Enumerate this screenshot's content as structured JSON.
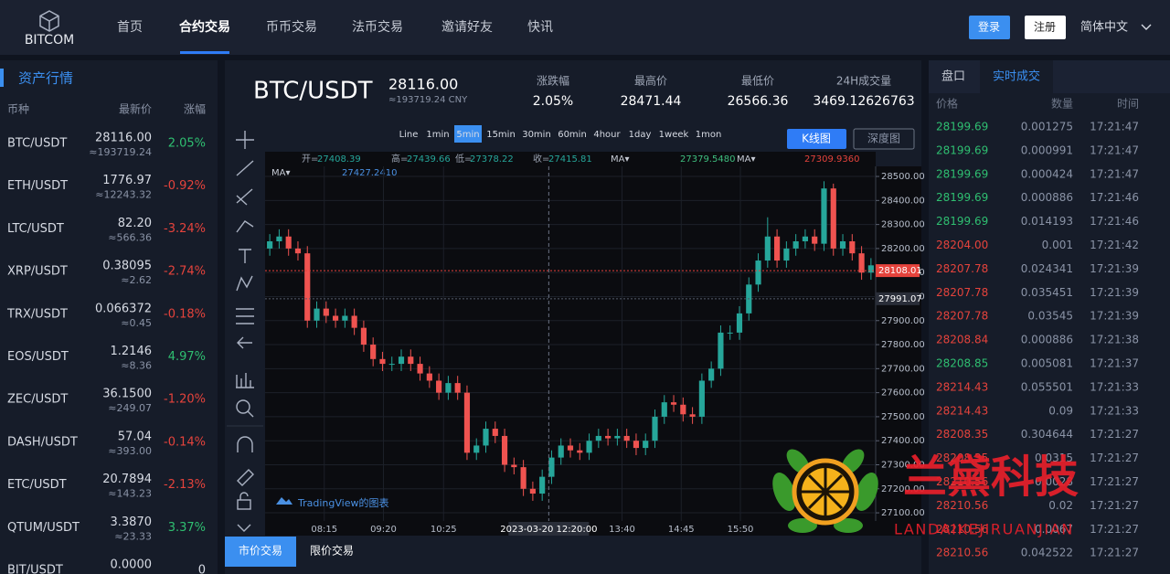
{
  "nav": {
    "logo": "BITCOM",
    "items": [
      "首页",
      "合约交易",
      "币币交易",
      "法币交易",
      "邀请好友",
      "快讯"
    ],
    "active": 1,
    "login": "登录",
    "register": "注册",
    "language": "简体中文"
  },
  "market": {
    "title": "资产行情",
    "columns": [
      "币种",
      "最新价",
      "涨幅"
    ],
    "rows": [
      {
        "pair": "BTC/USDT",
        "price": "28116.00",
        "cny": "≈193719.24",
        "change": "2.05%"
      },
      {
        "pair": "ETH/USDT",
        "price": "1776.97",
        "cny": "≈12243.32",
        "change": "-0.92%"
      },
      {
        "pair": "LTC/USDT",
        "price": "82.20",
        "cny": "≈566.36",
        "change": "-3.24%"
      },
      {
        "pair": "XRP/USDT",
        "price": "0.38095",
        "cny": "≈2.62",
        "change": "-2.74%"
      },
      {
        "pair": "TRX/USDT",
        "price": "0.066372",
        "cny": "≈0.45",
        "change": "-0.18%"
      },
      {
        "pair": "EOS/USDT",
        "price": "1.2146",
        "cny": "≈8.36",
        "change": "4.97%"
      },
      {
        "pair": "ZEC/USDT",
        "price": "36.1500",
        "cny": "≈249.07",
        "change": "-1.20%"
      },
      {
        "pair": "DASH/USDT",
        "price": "57.04",
        "cny": "≈393.00",
        "change": "-0.14%"
      },
      {
        "pair": "ETC/USDT",
        "price": "20.7894",
        "cny": "≈143.23",
        "change": "-2.13%"
      },
      {
        "pair": "QTUM/USDT",
        "price": "3.3870",
        "cny": "≈23.33",
        "change": "3.37%"
      },
      {
        "pair": "BIT/USDT",
        "price": "0.0000",
        "change": "0"
      }
    ],
    "up_color": "#2fbf71",
    "down_color": "#e5433c"
  },
  "ticker": {
    "pair": "BTC/USDT",
    "price": "28116.00",
    "cny": "≈193719.24 CNY",
    "stats": [
      {
        "label": "涨跌幅",
        "value": "2.05%"
      },
      {
        "label": "最高价",
        "value": "28471.44"
      },
      {
        "label": "最低价",
        "value": "26566.36"
      },
      {
        "label": "24H成交量",
        "value": "3469.12626763"
      }
    ]
  },
  "toolbar": {
    "intervals": [
      "Line",
      "1min",
      "5min",
      "15min",
      "30min",
      "60min",
      "4hour",
      "1day",
      "1week",
      "1mon"
    ],
    "active": 2,
    "kline": "K线图",
    "depth": "深度图"
  },
  "legend": {
    "ohlc": [
      {
        "label": "开=",
        "value": "27408.39"
      },
      {
        "label": "高=",
        "value": "27439.66"
      },
      {
        "label": "低=",
        "value": "27378.22"
      },
      {
        "label": "收=",
        "value": "27415.81"
      }
    ],
    "ma": [
      {
        "label": "MA▾",
        "value": "27379.5480",
        "color": "#3fbf7f"
      },
      {
        "label": "MA▾",
        "value": "27309.9360",
        "color": "#e5433c"
      },
      {
        "label": "MA▾",
        "value": "27427.2410",
        "color": "#4a90e2"
      }
    ]
  },
  "chart_data": {
    "type": "candlestick",
    "up_color": "#26a69a",
    "down_color": "#ef5350",
    "open": [
      28200,
      28230,
      28250,
      28200,
      28180,
      27900,
      27950,
      27920,
      27900,
      27920,
      27870,
      27800,
      27740,
      27720,
      27720,
      27750,
      27720,
      27680,
      27650,
      27600,
      27640,
      27600,
      27350,
      27380,
      27450,
      27420,
      27300,
      27290,
      27200,
      27180,
      27250,
      27330,
      27380,
      27360,
      27350,
      27400,
      27420,
      27410,
      27420,
      27400,
      27370,
      27400,
      27500,
      27560,
      27550,
      27510,
      27500,
      27650,
      27700,
      27850,
      27850,
      27930,
      28050,
      28150,
      28250,
      28150,
      28200,
      28230,
      28250,
      28220,
      28450,
      28200,
      28230,
      28180,
      28100
    ],
    "high": [
      28260,
      28280,
      28280,
      28230,
      28210,
      27980,
      27980,
      27950,
      27950,
      27950,
      27900,
      27830,
      27770,
      27750,
      27780,
      27780,
      27750,
      27710,
      27680,
      27670,
      27670,
      27630,
      27410,
      27480,
      27480,
      27450,
      27330,
      27320,
      27230,
      27280,
      27360,
      27410,
      27410,
      27390,
      27430,
      27450,
      27450,
      27450,
      27450,
      27430,
      27430,
      27530,
      27590,
      27590,
      27580,
      27540,
      27680,
      27730,
      27880,
      27880,
      27960,
      28080,
      28180,
      28330,
      28280,
      28230,
      28260,
      28280,
      28280,
      28480,
      28470,
      28260,
      28260,
      28210,
      28160
    ],
    "low": [
      28170,
      28200,
      28170,
      28150,
      27870,
      27870,
      27890,
      27870,
      27870,
      27840,
      27770,
      27710,
      27690,
      27690,
      27690,
      27690,
      27650,
      27620,
      27570,
      27570,
      27570,
      27320,
      27320,
      27350,
      27390,
      27270,
      27260,
      27170,
      27150,
      27150,
      27220,
      27300,
      27330,
      27320,
      27320,
      27370,
      27380,
      27380,
      27370,
      27340,
      27340,
      27370,
      27470,
      27520,
      27480,
      27470,
      27470,
      27620,
      27670,
      27820,
      27820,
      27900,
      28020,
      28120,
      28120,
      28120,
      28170,
      28200,
      28190,
      28190,
      28170,
      28170,
      28150,
      28070,
      28070
    ],
    "close": [
      28230,
      28250,
      28200,
      28180,
      27900,
      27950,
      27920,
      27900,
      27920,
      27870,
      27800,
      27740,
      27720,
      27720,
      27750,
      27720,
      27680,
      27650,
      27600,
      27640,
      27600,
      27350,
      27380,
      27450,
      27420,
      27300,
      27290,
      27200,
      27180,
      27250,
      27330,
      27380,
      27360,
      27350,
      27400,
      27420,
      27410,
      27420,
      27400,
      27370,
      27400,
      27500,
      27560,
      27550,
      27510,
      27500,
      27650,
      27700,
      27850,
      27850,
      27930,
      28050,
      28150,
      28250,
      28150,
      28200,
      28230,
      28250,
      28220,
      28450,
      28200,
      28230,
      28180,
      28100,
      28130
    ],
    "xlim": [
      0,
      65
    ],
    "xticks": [
      {
        "value": 6.3,
        "label": "08:15"
      },
      {
        "value": 12.6,
        "label": "09:20"
      },
      {
        "value": 19,
        "label": "10:25"
      },
      {
        "value": 38,
        "label": "13:40"
      },
      {
        "value": 44.3,
        "label": "14:45"
      },
      {
        "value": 50.6,
        "label": "15:50"
      }
    ],
    "ylim": [
      27066,
      28542
    ],
    "yticks": [
      {
        "value": 28500,
        "label": "28500.00"
      },
      {
        "value": 28400,
        "label": "28400.00"
      },
      {
        "value": 28300,
        "label": "28300.00"
      },
      {
        "value": 28200,
        "label": "28200.00"
      },
      {
        "value": 28100,
        "label": "28100.00"
      },
      {
        "value": 28000,
        "label": "28000.00"
      },
      {
        "value": 27900,
        "label": "27900.00"
      },
      {
        "value": 27800,
        "label": "27800.00"
      },
      {
        "value": 27700,
        "label": "27700.00"
      },
      {
        "value": 27600,
        "label": "27600.00"
      },
      {
        "value": 27500,
        "label": "27500.00"
      },
      {
        "value": 27400,
        "label": "27400.00"
      },
      {
        "value": 27300,
        "label": "27300.00"
      },
      {
        "value": 27200,
        "label": "27200.00"
      },
      {
        "value": 27100,
        "label": "27100.00"
      }
    ],
    "grid": true,
    "price_lines": [
      {
        "value": 28108.01,
        "color": "#e5433c"
      },
      {
        "value": 27991.07,
        "color": "#2a2e39"
      }
    ],
    "crosshair": {
      "x": 30.2,
      "label": "2023-03-20 12:20:00"
    },
    "watermark": "TradingView的图表"
  },
  "order_tabs": [
    "市价交易",
    "限价交易"
  ],
  "trades": {
    "tabs": [
      "盘口",
      "实时成交"
    ],
    "active": 1,
    "columns": [
      "价格",
      "数量",
      "时间"
    ],
    "rows": [
      {
        "price": "28199.69",
        "amount": "0.001275",
        "time": "17:21:47",
        "color": "#2fbf71"
      },
      {
        "price": "28199.69",
        "amount": "0.000991",
        "time": "17:21:47",
        "color": "#2fbf71"
      },
      {
        "price": "28199.69",
        "amount": "0.000424",
        "time": "17:21:47",
        "color": "#2fbf71"
      },
      {
        "price": "28199.69",
        "amount": "0.000886",
        "time": "17:21:46",
        "color": "#2fbf71"
      },
      {
        "price": "28199.69",
        "amount": "0.014193",
        "time": "17:21:46",
        "color": "#2fbf71"
      },
      {
        "price": "28204.00",
        "amount": "0.001",
        "time": "17:21:42",
        "color": "#e5433c"
      },
      {
        "price": "28207.78",
        "amount": "0.024341",
        "time": "17:21:39",
        "color": "#e5433c"
      },
      {
        "price": "28207.78",
        "amount": "0.035451",
        "time": "17:21:39",
        "color": "#e5433c"
      },
      {
        "price": "28207.78",
        "amount": "0.03545",
        "time": "17:21:39",
        "color": "#e5433c"
      },
      {
        "price": "28208.84",
        "amount": "0.000886",
        "time": "17:21:38",
        "color": "#e5433c"
      },
      {
        "price": "28208.85",
        "amount": "0.005081",
        "time": "17:21:37",
        "color": "#2fbf71"
      },
      {
        "price": "28214.43",
        "amount": "0.055501",
        "time": "17:21:33",
        "color": "#e5433c"
      },
      {
        "price": "28214.43",
        "amount": "0.09",
        "time": "17:21:33",
        "color": "#e5433c"
      },
      {
        "price": "28208.35",
        "amount": "0.304644",
        "time": "17:21:27",
        "color": "#e5433c"
      },
      {
        "price": "28208.35",
        "amount": "0.0315",
        "time": "17:21:27",
        "color": "#e5433c"
      },
      {
        "price": "28210.56",
        "amount": "0.0028",
        "time": "17:21:27",
        "color": "#e5433c"
      },
      {
        "price": "28210.56",
        "amount": "0.02",
        "time": "17:21:27",
        "color": "#e5433c"
      },
      {
        "price": "28210.56",
        "amount": "0.0067",
        "time": "17:21:27",
        "color": "#e5433c"
      },
      {
        "price": "28210.56",
        "amount": "0.042522",
        "time": "17:21:27",
        "color": "#e5433c"
      }
    ]
  },
  "watermark": {
    "title": "兰黛科技",
    "subtitle": "LANDAIKEJIRUANJIAN"
  }
}
